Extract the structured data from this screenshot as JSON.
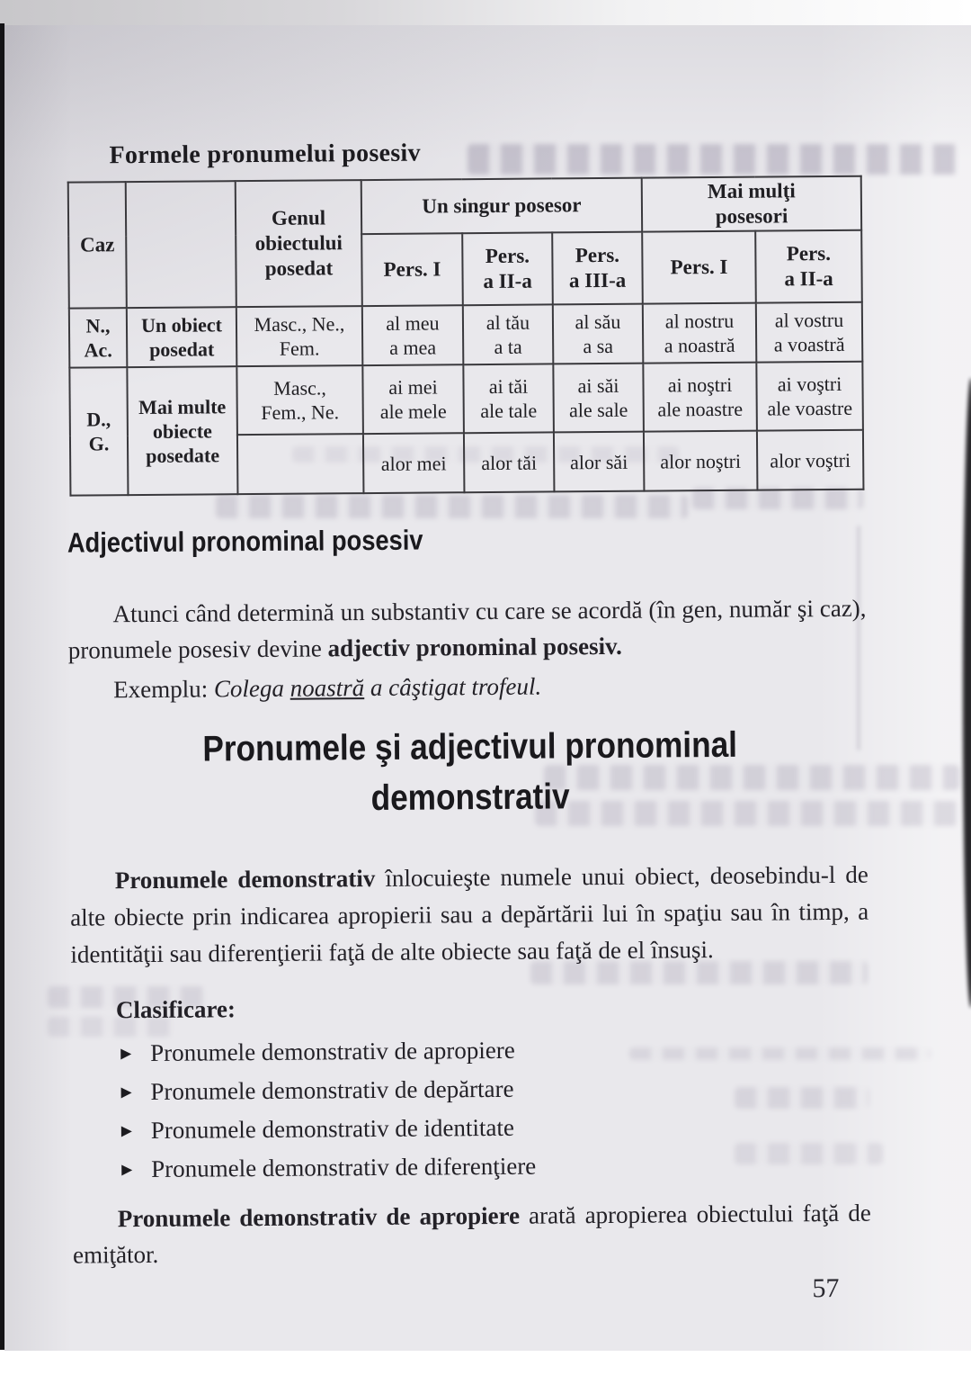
{
  "page": {
    "number": "57"
  },
  "colors": {
    "page_bg": "#e9e8ec",
    "ink": "#232127",
    "table_border": "#3a393d",
    "edge_strip": "#141316"
  },
  "forms_table": {
    "title": "Formele pronumelui posesiv",
    "header": {
      "caz": "Caz",
      "genul": "Genul\nobiectului\nposedat",
      "un_singur_posesor": "Un singur posesor",
      "mai_multi_posesori": "Mai mulţi\nposesori",
      "sub_persoane": [
        "Pers. I",
        "Pers.\na II-a",
        "Pers.\na III-a",
        "Pers. I",
        "Pers.\na II-a"
      ]
    },
    "rows": {
      "r1": {
        "caz": "N.,\nAc.",
        "obiecte": "Un obiect\nposedat",
        "genul": "Masc., Ne.,\nFem.",
        "pers1": "al meu\na mea",
        "pers2": "al tău\na ta",
        "pers3": "al său\na sa",
        "pers1m": "al nostru\na noastră",
        "pers2m": "al vostru\na voastră"
      },
      "r2": {
        "caz": "D.,\nG.",
        "obiecte": "Mai multe\nobiecte\nposedate",
        "genul": "Masc.,\nFem., Ne.",
        "pers1": "ai mei\nale mele",
        "pers2": "ai tăi\nale tale",
        "pers3": "ai săi\nale sale",
        "pers1m": "ai noştri\nale noastre",
        "pers2m": "ai voştri\nale voastre"
      },
      "r3": {
        "genul": "",
        "pers1": "alor mei",
        "pers2": "alor tăi",
        "pers3": "alor săi",
        "pers1m": "alor noştri",
        "pers2m": "alor voştri"
      }
    }
  },
  "adjectival_section": {
    "heading": "Adjectivul pronominal posesiv",
    "paragraph": [
      {
        "t": "Atunci când determină un substantiv cu care se acordă (în gen, număr şi caz), pronumele posesiv devine "
      },
      {
        "t": "adjectiv pronominal posesiv.",
        "b": true
      }
    ],
    "example": [
      {
        "t": "Exemplu: "
      },
      {
        "t": "Colega ",
        "i": true
      },
      {
        "t": "noastră",
        "i": true,
        "u": true
      },
      {
        "t": " a câştigat trofeul.",
        "i": true
      }
    ]
  },
  "demonstrative_section": {
    "heading": "Pronumele şi adjectivul pronominal\ndemonstrativ",
    "intro": [
      {
        "t": "Pronumele demonstrativ",
        "b": true
      },
      {
        "t": " înlocuieşte numele unui obiect, deosebindu-l de alte obiecte prin indicarea apropierii sau a depărtării lui în spaţiu sau în timp, a identităţii sau diferenţierii faţă de alte obiecte sau faţă de el însuşi."
      }
    ],
    "classification_label": "Clasificare:",
    "bullet_marker": "►",
    "bullets": [
      "Pronumele demonstrativ de apropiere",
      "Pronumele demonstrativ de depărtare",
      "Pronumele demonstrativ de identitate",
      "Pronumele demonstrativ de diferenţiere"
    ],
    "apropiere": [
      {
        "t": "Pronumele demonstrativ de apropiere",
        "b": true
      },
      {
        "t": " arată apropierea obiectului faţă de emiţător."
      }
    ]
  }
}
